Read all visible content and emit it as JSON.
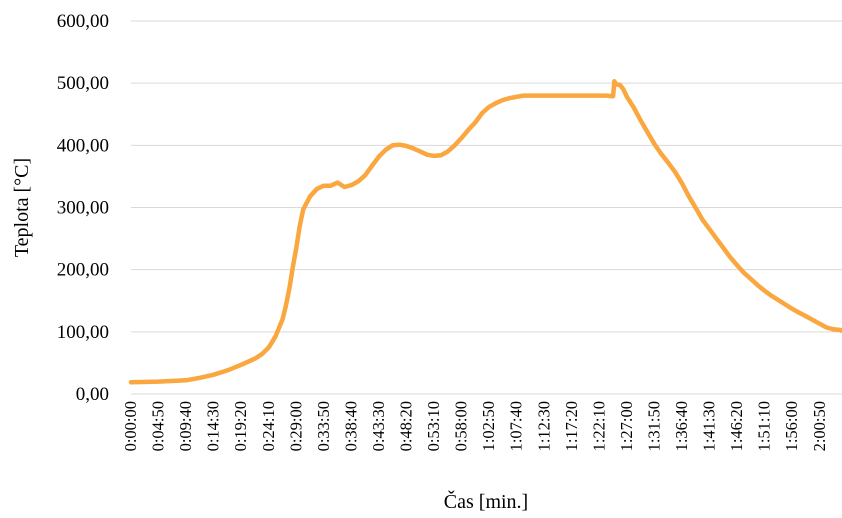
{
  "chart_data": {
    "type": "line",
    "title": "",
    "xlabel": "Čas [min.]",
    "ylabel": "Teplota [°C]",
    "ylim": [
      0,
      600
    ],
    "yticks": [
      "0,00",
      "100,00",
      "200,00",
      "300,00",
      "400,00",
      "500,00",
      "600,00"
    ],
    "xticks": [
      "0:00:00",
      "0:04:50",
      "0:09:40",
      "0:14:30",
      "0:19:20",
      "0:24:10",
      "0:29:00",
      "0:33:50",
      "0:38:40",
      "0:43:30",
      "0:48:20",
      "0:53:10",
      "0:58:00",
      "1:02:50",
      "1:07:40",
      "1:12:30",
      "1:17:20",
      "1:22:10",
      "1:27:00",
      "1:31:50",
      "1:36:40",
      "1:41:30",
      "1:46:20",
      "1:51:10",
      "1:56:00",
      "2:00:50"
    ],
    "grid": true,
    "legend": "none",
    "series_color": "#f9a73e",
    "x": [
      "0:00:00",
      "0:04:50",
      "0:09:40",
      "0:12:05",
      "0:14:30",
      "0:16:55",
      "0:19:20",
      "0:21:45",
      "0:22:57",
      "0:24:10",
      "0:25:22",
      "0:26:35",
      "0:27:10",
      "0:27:47",
      "0:28:24",
      "0:29:00",
      "0:29:36",
      "0:30:13",
      "0:31:25",
      "0:32:38",
      "0:33:50",
      "0:35:02",
      "0:36:15",
      "0:37:27",
      "0:38:40",
      "0:39:52",
      "0:41:05",
      "0:42:17",
      "0:43:30",
      "0:44:42",
      "0:45:55",
      "0:47:07",
      "0:48:20",
      "0:49:32",
      "0:50:45",
      "0:51:57",
      "0:53:10",
      "0:54:22",
      "0:55:35",
      "0:56:47",
      "0:58:00",
      "0:59:12",
      "1:00:25",
      "1:01:37",
      "1:02:50",
      "1:04:02",
      "1:05:15",
      "1:06:27",
      "1:07:40",
      "1:08:52",
      "1:10:05",
      "1:11:17",
      "1:12:30",
      "1:14:55",
      "1:17:20",
      "1:19:45",
      "1:22:10",
      "1:23:22",
      "1:24:35",
      "1:24:47",
      "1:25:11",
      "1:25:47",
      "1:26:23",
      "1:27:00",
      "1:28:12",
      "1:29:25",
      "1:30:37",
      "1:31:50",
      "1:33:02",
      "1:34:15",
      "1:35:27",
      "1:36:40",
      "1:37:52",
      "1:39:05",
      "1:40:17",
      "1:41:30",
      "1:42:42",
      "1:43:55",
      "1:45:07",
      "1:46:20",
      "1:47:32",
      "1:48:45",
      "1:49:57",
      "1:51:10",
      "1:52:22",
      "1:53:35",
      "1:54:47",
      "1:56:00",
      "1:57:12",
      "1:58:25",
      "1:59:37",
      "2:00:50",
      "2:02:02",
      "2:03:15",
      "2:04:27",
      "2:05:40"
    ],
    "y": [
      19,
      20,
      22,
      26,
      31,
      38,
      47,
      57,
      64,
      75,
      93,
      120,
      142,
      170,
      205,
      235,
      270,
      297,
      318,
      330,
      335,
      335,
      340,
      333,
      336,
      342,
      352,
      367,
      382,
      393,
      400,
      401,
      399,
      395,
      390,
      385,
      383,
      384,
      390,
      400,
      412,
      425,
      437,
      452,
      462,
      468,
      473,
      476,
      478,
      480,
      480,
      480,
      480,
      480,
      480,
      480,
      480,
      480,
      479,
      503,
      498,
      497,
      490,
      478,
      461,
      440,
      421,
      402,
      386,
      372,
      357,
      339,
      318,
      299,
      280,
      265,
      250,
      235,
      220,
      207,
      195,
      185,
      175,
      166,
      158,
      151,
      144,
      137,
      131,
      125,
      119,
      113,
      107,
      104,
      103,
      102
    ]
  }
}
